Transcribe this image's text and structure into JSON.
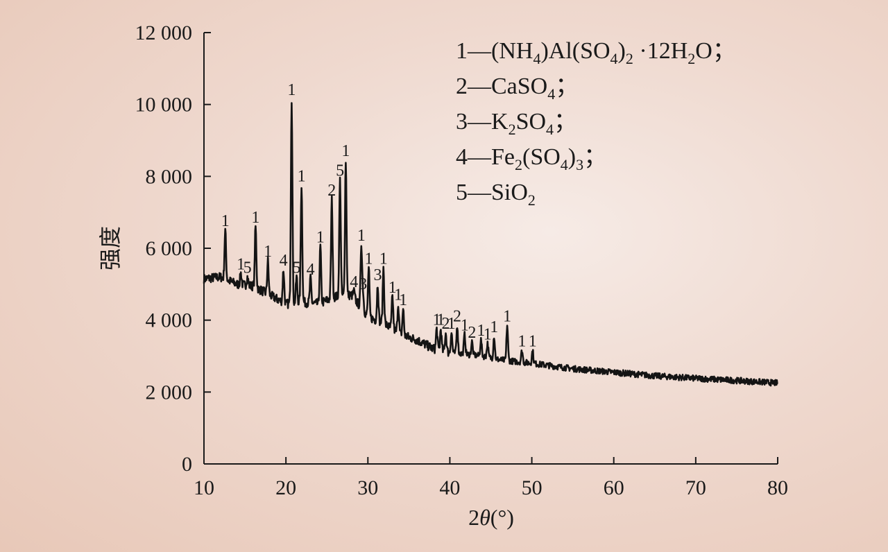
{
  "chart_data": {
    "type": "line",
    "title": "",
    "xlabel": "2θ(°)",
    "ylabel": "强度",
    "xlim": [
      10,
      80
    ],
    "ylim": [
      0,
      12000
    ],
    "x_ticks": [
      10,
      20,
      30,
      40,
      50,
      60,
      70,
      80
    ],
    "y_ticks": [
      0,
      2000,
      4000,
      6000,
      8000,
      10000,
      12000
    ],
    "x_tick_labels": [
      "10",
      "20",
      "30",
      "40",
      "50",
      "60",
      "70",
      "80"
    ],
    "y_tick_labels": [
      "0",
      "2 000",
      "4 000",
      "6 000",
      "8 000",
      "10 000",
      "12 000"
    ],
    "grid": false,
    "legend_position": "top-right",
    "legend": [
      {
        "id": "1",
        "dash": "—",
        "formula": [
          [
            "(NH",
            "n"
          ],
          [
            "4",
            "sub"
          ],
          [
            ")Al(SO",
            "n"
          ],
          [
            "4",
            "sub"
          ],
          [
            ")",
            "n"
          ],
          [
            "2",
            "sub"
          ],
          [
            " ·12H",
            "n"
          ],
          [
            "2",
            "sub"
          ],
          [
            "O；",
            "n"
          ]
        ]
      },
      {
        "id": "2",
        "dash": "—",
        "formula": [
          [
            "CaSO",
            "n"
          ],
          [
            "4",
            "sub"
          ],
          [
            "；",
            "n"
          ]
        ]
      },
      {
        "id": "3",
        "dash": "—",
        "formula": [
          [
            "K",
            "n"
          ],
          [
            "2",
            "sub"
          ],
          [
            "SO",
            "n"
          ],
          [
            "4",
            "sub"
          ],
          [
            "；",
            "n"
          ]
        ]
      },
      {
        "id": "4",
        "dash": "—",
        "formula": [
          [
            "Fe",
            "n"
          ],
          [
            "2",
            "sub"
          ],
          [
            "(SO",
            "n"
          ],
          [
            "4",
            "sub"
          ],
          [
            ")",
            "n"
          ],
          [
            "3",
            "sub"
          ],
          [
            "；",
            "n"
          ]
        ]
      },
      {
        "id": "5",
        "dash": "—",
        "formula": [
          [
            "SiO",
            "n"
          ],
          [
            "2",
            "sub"
          ]
        ]
      }
    ],
    "background": [
      [
        10,
        5150
      ],
      [
        12,
        5200
      ],
      [
        14,
        5000
      ],
      [
        16,
        4950
      ],
      [
        18,
        4700
      ],
      [
        20,
        4450
      ],
      [
        22,
        4500
      ],
      [
        24,
        4450
      ],
      [
        26,
        4650
      ],
      [
        28,
        4700
      ],
      [
        30,
        4100
      ],
      [
        32,
        3900
      ],
      [
        34,
        3600
      ],
      [
        36,
        3450
      ],
      [
        38,
        3200
      ],
      [
        40,
        3100
      ],
      [
        42,
        3050
      ],
      [
        44,
        3000
      ],
      [
        46,
        2900
      ],
      [
        48,
        2850
      ],
      [
        50,
        2800
      ],
      [
        55,
        2650
      ],
      [
        60,
        2550
      ],
      [
        65,
        2450
      ],
      [
        70,
        2380
      ],
      [
        75,
        2320
      ],
      [
        80,
        2250
      ]
    ],
    "peaks": [
      {
        "x": 12.6,
        "y": 6500,
        "label": "1"
      },
      {
        "x": 14.5,
        "y": 5300,
        "label": "1"
      },
      {
        "x": 15.3,
        "y": 5200,
        "label": "5"
      },
      {
        "x": 16.3,
        "y": 6600,
        "label": "1"
      },
      {
        "x": 17.8,
        "y": 5650,
        "label": "1"
      },
      {
        "x": 19.7,
        "y": 5400,
        "label": "4"
      },
      {
        "x": 20.7,
        "y": 10150,
        "label": "1"
      },
      {
        "x": 21.3,
        "y": 5200,
        "label": "5"
      },
      {
        "x": 21.9,
        "y": 7750,
        "label": "1"
      },
      {
        "x": 23.0,
        "y": 5150,
        "label": "4"
      },
      {
        "x": 24.2,
        "y": 6050,
        "label": "1"
      },
      {
        "x": 25.6,
        "y": 7350,
        "label": "2"
      },
      {
        "x": 26.6,
        "y": 7900,
        "label": "5"
      },
      {
        "x": 27.3,
        "y": 8450,
        "label": "1"
      },
      {
        "x": 28.3,
        "y": 4800,
        "label": "4"
      },
      {
        "x": 29.2,
        "y": 6100,
        "label": "1"
      },
      {
        "x": 29.4,
        "y": 4750,
        "label": "3"
      },
      {
        "x": 30.1,
        "y": 5450,
        "label": "1"
      },
      {
        "x": 31.2,
        "y": 5000,
        "label": "3"
      },
      {
        "x": 31.9,
        "y": 5450,
        "label": "1"
      },
      {
        "x": 33.0,
        "y": 4650,
        "label": "1"
      },
      {
        "x": 33.7,
        "y": 4450,
        "label": "1"
      },
      {
        "x": 34.3,
        "y": 4300,
        "label": "1"
      },
      {
        "x": 38.4,
        "y": 3750,
        "label": "1"
      },
      {
        "x": 38.9,
        "y": 3750,
        "label": "1"
      },
      {
        "x": 39.5,
        "y": 3650,
        "label": "2"
      },
      {
        "x": 40.2,
        "y": 3650,
        "label": "1"
      },
      {
        "x": 40.9,
        "y": 3850,
        "label": "2"
      },
      {
        "x": 41.8,
        "y": 3600,
        "label": "1"
      },
      {
        "x": 42.7,
        "y": 3400,
        "label": "2"
      },
      {
        "x": 43.8,
        "y": 3450,
        "label": "1"
      },
      {
        "x": 44.6,
        "y": 3350,
        "label": "1"
      },
      {
        "x": 45.4,
        "y": 3550,
        "label": "1"
      },
      {
        "x": 47.0,
        "y": 3850,
        "label": "1"
      },
      {
        "x": 48.8,
        "y": 3150,
        "label": "1"
      },
      {
        "x": 50.1,
        "y": 3150,
        "label": "1"
      }
    ]
  }
}
